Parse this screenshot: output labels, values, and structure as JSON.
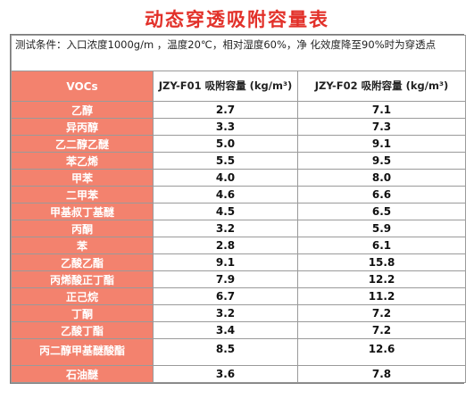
{
  "title": "动态穿透吸附容量表",
  "conditions": "测试条件：入口浓度1000g/m ，温度20℃，相对湿度60%，净 化效度降至90%时为穿透点",
  "headers": {
    "vocs": "VOCs",
    "f01": "JZY-F01 吸附容量 (kg/m³)",
    "f02": "JZY-F02 吸附容量  (kg/m³)"
  },
  "rows": [
    {
      "voc": "乙醇",
      "f01": "2.7",
      "f02": "7.1"
    },
    {
      "voc": "异丙醇",
      "f01": "3.3",
      "f02": "7.3"
    },
    {
      "voc": "乙二醇乙醚",
      "f01": "5.0",
      "f02": "9.1"
    },
    {
      "voc": "苯乙烯",
      "f01": "5.5",
      "f02": "9.5"
    },
    {
      "voc": "甲苯",
      "f01": "4.0",
      "f02": "8.0"
    },
    {
      "voc": "二甲苯",
      "f01": "4.6",
      "f02": "6.6"
    },
    {
      "voc": "甲基叔丁基醚",
      "f01": "4.5",
      "f02": "6.5"
    },
    {
      "voc": "丙酮",
      "f01": "3.2",
      "f02": "5.9"
    },
    {
      "voc": "苯",
      "f01": "2.8",
      "f02": "6.1"
    },
    {
      "voc": "乙酸乙酯",
      "f01": "9.1",
      "f02": "15.8"
    },
    {
      "voc": "丙烯酸正丁酯",
      "f01": "7.9",
      "f02": "12.2"
    },
    {
      "voc": "正己烷",
      "f01": "6.7",
      "f02": "11.2"
    },
    {
      "voc": "丁酮",
      "f01": "3.2",
      "f02": "7.2"
    },
    {
      "voc": "乙酸丁酯",
      "f01": "3.4",
      "f02": "7.2"
    },
    {
      "voc": "丙二醇甲基醚酸酯",
      "f01": "8.5",
      "f02": "12.6"
    },
    {
      "voc": "石油醚",
      "f01": "3.6",
      "f02": "7.8"
    }
  ],
  "colors": {
    "title": "#e2312a",
    "voc_header_bg": "#f3826e"
  }
}
